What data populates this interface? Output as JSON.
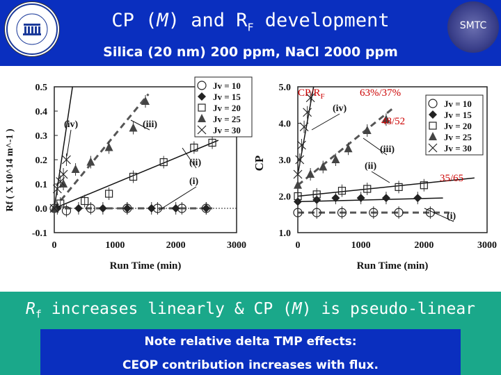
{
  "header": {
    "title_main": "CP (",
    "title_m": "M",
    "title_mid": ") and R",
    "title_sub": "F",
    "title_end": " development",
    "subtitle": "Silica (20 nm) 200 ppm, NaCl 2000 ppm",
    "logo_text": "Centre for Membrane Science and Technology UNESCO",
    "badge": "SMTC"
  },
  "annotations": {
    "cp_rf": "CP/R",
    "cp_rf_sub": "F",
    "pct1": "63%/37%",
    "pct2": "48/52",
    "pct3": "35/65"
  },
  "footer": {
    "conclusion_a": "R",
    "conclusion_sub": "f",
    "conclusion_b": " increases linearly & CP (",
    "conclusion_m": "M",
    "conclusion_c": ") is pseudo-linear",
    "note_line1": "Note relative delta TMP effects:",
    "note_line2": "CEOP contribution increases with flux."
  },
  "colors": {
    "header_bg": "#0a2fbf",
    "footer_bg": "#1aa88a",
    "annotation": "#cc0000"
  },
  "chart_data": [
    {
      "type": "scatter",
      "title": "",
      "xlabel": "Run Time (min)",
      "ylabel": "Rf ( X 10^14 m^-1 )",
      "xlim": [
        0,
        3000
      ],
      "ylim": [
        -0.1,
        0.5
      ],
      "xticks": [
        "0",
        "1000",
        "2000",
        "3000"
      ],
      "yticks": [
        "-0.1",
        "0.0",
        "0.1",
        "0.2",
        "0.3",
        "0.4",
        "0.5"
      ],
      "legend_position": "top-right",
      "series": [
        {
          "name": "Jv = 10",
          "marker": "circle",
          "label": "(i)",
          "x": [
            0,
            200,
            600,
            1200,
            1700,
            2100,
            2500
          ],
          "y": [
            0.0,
            -0.01,
            0.0,
            0.0,
            0.0,
            0.0,
            0.0
          ]
        },
        {
          "name": "Jv = 15",
          "marker": "diamond",
          "label": "(i)",
          "x": [
            50,
            400,
            800,
            1200,
            1600,
            2000,
            2500
          ],
          "y": [
            0.0,
            0.0,
            0.0,
            0.0,
            0.0,
            0.0,
            0.0
          ]
        },
        {
          "name": "Jv = 20",
          "marker": "square",
          "label": "(ii)",
          "x": [
            100,
            500,
            900,
            1300,
            1800,
            2300,
            2600
          ],
          "y": [
            0.02,
            0.03,
            0.06,
            0.13,
            0.19,
            0.25,
            0.27
          ]
        },
        {
          "name": "Jv = 25",
          "marker": "triangle",
          "label": "(iii)",
          "x": [
            0,
            150,
            350,
            600,
            900,
            1300,
            1500
          ],
          "y": [
            0.0,
            0.1,
            0.16,
            0.19,
            0.25,
            0.33,
            0.44
          ]
        },
        {
          "name": "Jv = 30",
          "marker": "x",
          "label": "(iv)",
          "x": [
            0,
            50,
            100,
            150,
            200
          ],
          "y": [
            0.0,
            0.08,
            0.11,
            0.14,
            0.2
          ]
        }
      ],
      "trendlines": [
        {
          "from": [
            0,
            0.0
          ],
          "to": [
            2600,
            0.0
          ],
          "style": "dashed"
        },
        {
          "from": [
            0,
            0.0
          ],
          "to": [
            2700,
            0.28
          ],
          "style": "solid"
        },
        {
          "from": [
            0,
            0.0
          ],
          "to": [
            1550,
            0.47
          ],
          "style": "dashed"
        },
        {
          "from": [
            0,
            0.0
          ],
          "to": [
            300,
            0.5
          ],
          "style": "solid"
        }
      ],
      "labels": [
        "(iv)",
        "(iii)",
        "(ii)",
        "(i)"
      ]
    },
    {
      "type": "scatter",
      "title": "",
      "xlabel": "Run Time (min)",
      "ylabel": "CP",
      "xlim": [
        0,
        3000
      ],
      "ylim": [
        1.0,
        5.0
      ],
      "xticks": [
        "0",
        "1000",
        "2000",
        "3000"
      ],
      "yticks": [
        "1.0",
        "2.0",
        "3.0",
        "4.0",
        "5.0"
      ],
      "legend_position": "top-right",
      "series": [
        {
          "name": "Jv = 10",
          "marker": "circle",
          "label": "(i)",
          "x": [
            0,
            300,
            700,
            1200,
            1600,
            2100
          ],
          "y": [
            1.55,
            1.55,
            1.55,
            1.55,
            1.55,
            1.55
          ]
        },
        {
          "name": "Jv = 15",
          "marker": "diamond",
          "label": "(i)",
          "x": [
            0,
            300,
            600,
            1000,
            1400,
            1900
          ],
          "y": [
            1.85,
            1.9,
            1.95,
            1.95,
            1.95,
            1.95
          ]
        },
        {
          "name": "Jv = 20",
          "marker": "square",
          "label": "(ii)",
          "x": [
            0,
            300,
            700,
            1100,
            1600,
            2000
          ],
          "y": [
            2.0,
            2.05,
            2.15,
            2.2,
            2.25,
            2.3
          ]
        },
        {
          "name": "Jv = 25",
          "marker": "triangle",
          "label": "(iii)",
          "x": [
            0,
            200,
            400,
            600,
            800,
            1100,
            1400
          ],
          "y": [
            2.3,
            2.6,
            2.8,
            3.0,
            3.3,
            3.8,
            4.1
          ]
        },
        {
          "name": "Jv = 30",
          "marker": "x",
          "label": "(iv)",
          "x": [
            0,
            30,
            60,
            100,
            150,
            200
          ],
          "y": [
            2.6,
            3.0,
            3.4,
            3.9,
            4.3,
            4.7
          ]
        }
      ],
      "trendlines": [
        {
          "from": [
            0,
            1.55
          ],
          "to": [
            2400,
            1.55
          ],
          "style": "dashed"
        },
        {
          "from": [
            0,
            1.85
          ],
          "to": [
            2300,
            1.95
          ],
          "style": "solid"
        },
        {
          "from": [
            0,
            2.0
          ],
          "to": [
            2800,
            2.5
          ],
          "style": "solid"
        },
        {
          "from": [
            0,
            2.3
          ],
          "to": [
            1500,
            4.4
          ],
          "style": "dashed"
        },
        {
          "from": [
            0,
            2.6
          ],
          "to": [
            250,
            5.0
          ],
          "style": "solid"
        }
      ],
      "labels": [
        "(iv)",
        "(iii)",
        "(ii)",
        "(i)"
      ]
    }
  ]
}
